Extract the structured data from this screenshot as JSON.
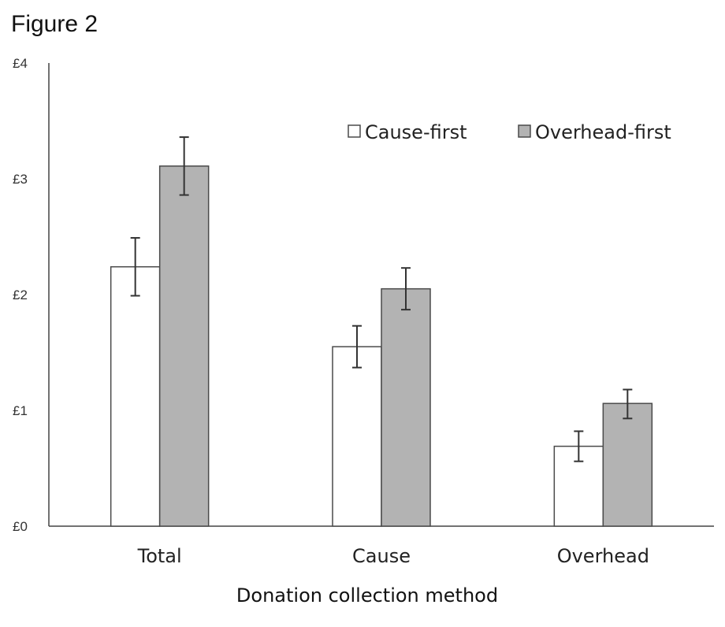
{
  "figure_title": "Figure 2",
  "chart_data": {
    "type": "bar",
    "title": "",
    "xlabel": "Donation collection method",
    "ylabel": "",
    "ylim": [
      0,
      4
    ],
    "ytick_labels": [
      "£0",
      "£1",
      "£2",
      "£3",
      "£4"
    ],
    "categories": [
      "Total",
      "Cause",
      "Overhead"
    ],
    "series": [
      {
        "name": "Cause-first",
        "color": "#ffffff",
        "values": [
          2.24,
          1.55,
          0.69
        ],
        "error_low": [
          1.99,
          1.37,
          0.56
        ],
        "error_high": [
          2.49,
          1.73,
          0.82
        ]
      },
      {
        "name": "Overhead-first",
        "color": "#b3b3b3",
        "values": [
          3.11,
          2.05,
          1.06
        ],
        "error_low": [
          2.86,
          1.87,
          0.93
        ],
        "error_high": [
          3.36,
          2.23,
          1.18
        ]
      }
    ],
    "legend_position": "top-right",
    "grid": false
  }
}
